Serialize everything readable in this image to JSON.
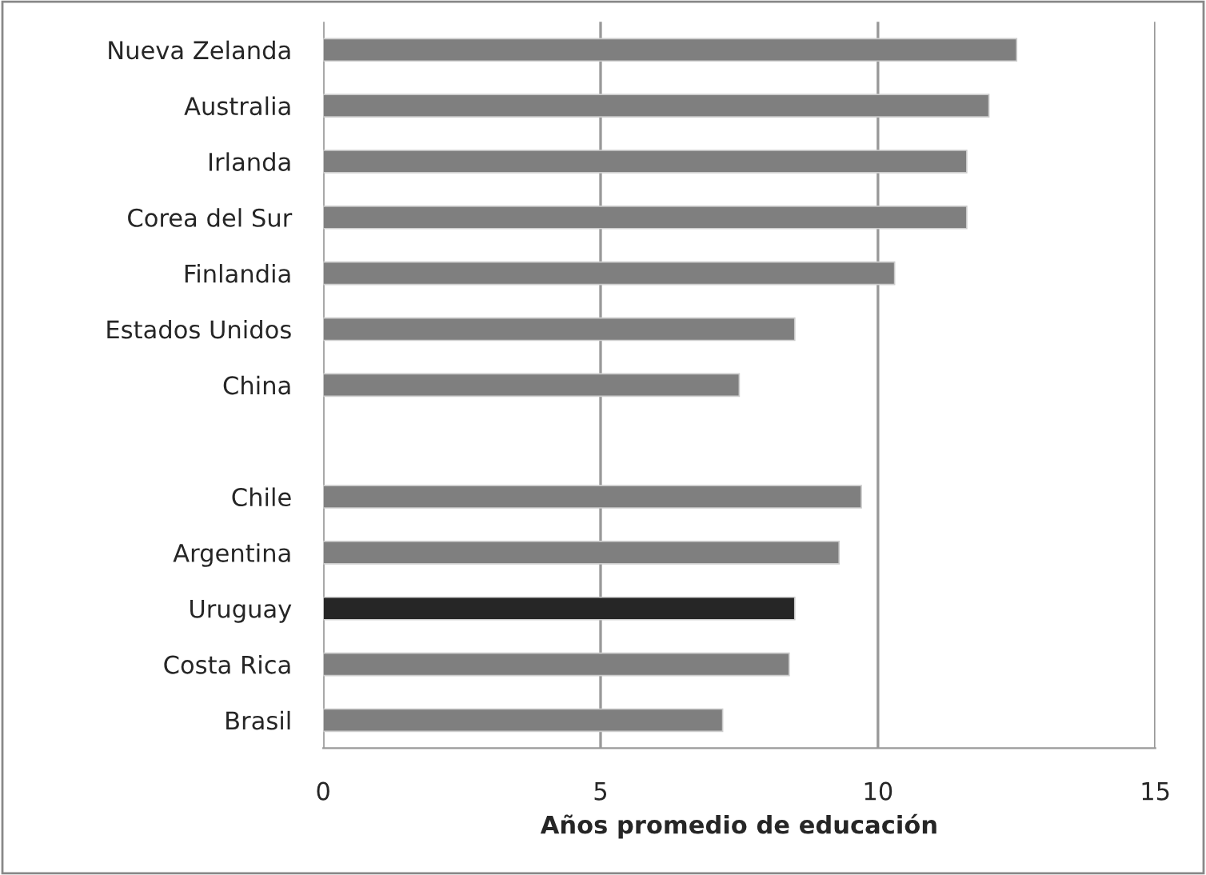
{
  "chart_data": {
    "type": "bar",
    "orientation": "horizontal",
    "xlabel": "Años promedio de educación",
    "categories": [
      "Nueva Zelanda",
      "Australia",
      "Irlanda",
      "Corea del Sur",
      "Finlandia",
      "Estados Unidos",
      "China",
      null,
      "Chile",
      "Argentina",
      "Uruguay",
      "Costa Rica",
      "Brasil"
    ],
    "values": [
      12.5,
      12.0,
      11.6,
      11.6,
      10.3,
      8.5,
      7.5,
      null,
      9.7,
      9.3,
      8.5,
      8.4,
      7.2
    ],
    "colors": [
      "#7f7f7f",
      "#7f7f7f",
      "#7f7f7f",
      "#7f7f7f",
      "#7f7f7f",
      "#7f7f7f",
      "#7f7f7f",
      "#7f7f7f",
      "#7f7f7f",
      "#7f7f7f",
      "#262626",
      "#7f7f7f",
      "#7f7f7f"
    ],
    "xlim": [
      0,
      15
    ],
    "xticks": [
      0,
      5,
      10,
      15
    ],
    "grid": "x"
  }
}
